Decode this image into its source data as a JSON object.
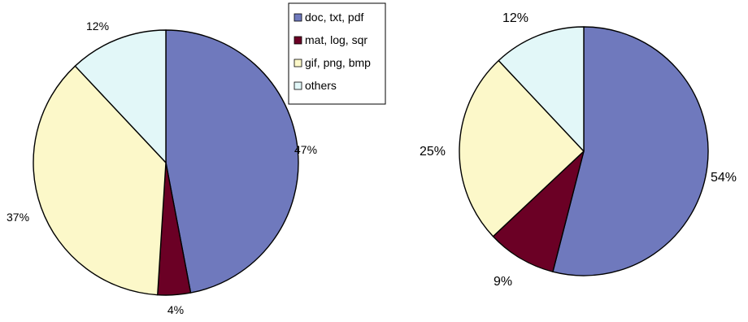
{
  "chart_data": [
    {
      "type": "pie",
      "categories": [
        "doc, txt, pdf",
        "mat, log, sqr",
        "gif, png, bmp",
        "others"
      ],
      "values": [
        47,
        4,
        37,
        12
      ],
      "labels": [
        "47%",
        "4%",
        "37%",
        "12%"
      ],
      "legend": {
        "placement": "top-right",
        "entries": [
          "doc, txt, pdf",
          "mat, log, sqr",
          "gif, png, bmp",
          "others"
        ]
      },
      "title": "",
      "colors": [
        "#6f79bd",
        "#6b0025",
        "#fcf8c9",
        "#e2f7f8"
      ]
    },
    {
      "type": "pie",
      "categories": [
        "doc, txt, pdf",
        "mat, log, sqr",
        "gif, png, bmp",
        "others"
      ],
      "values": [
        54,
        9,
        25,
        12
      ],
      "labels": [
        "54%",
        "9%",
        "25%",
        "12%"
      ],
      "title": "",
      "colors": [
        "#6f79bd",
        "#6b0025",
        "#fcf8c9",
        "#e2f7f8"
      ]
    }
  ]
}
